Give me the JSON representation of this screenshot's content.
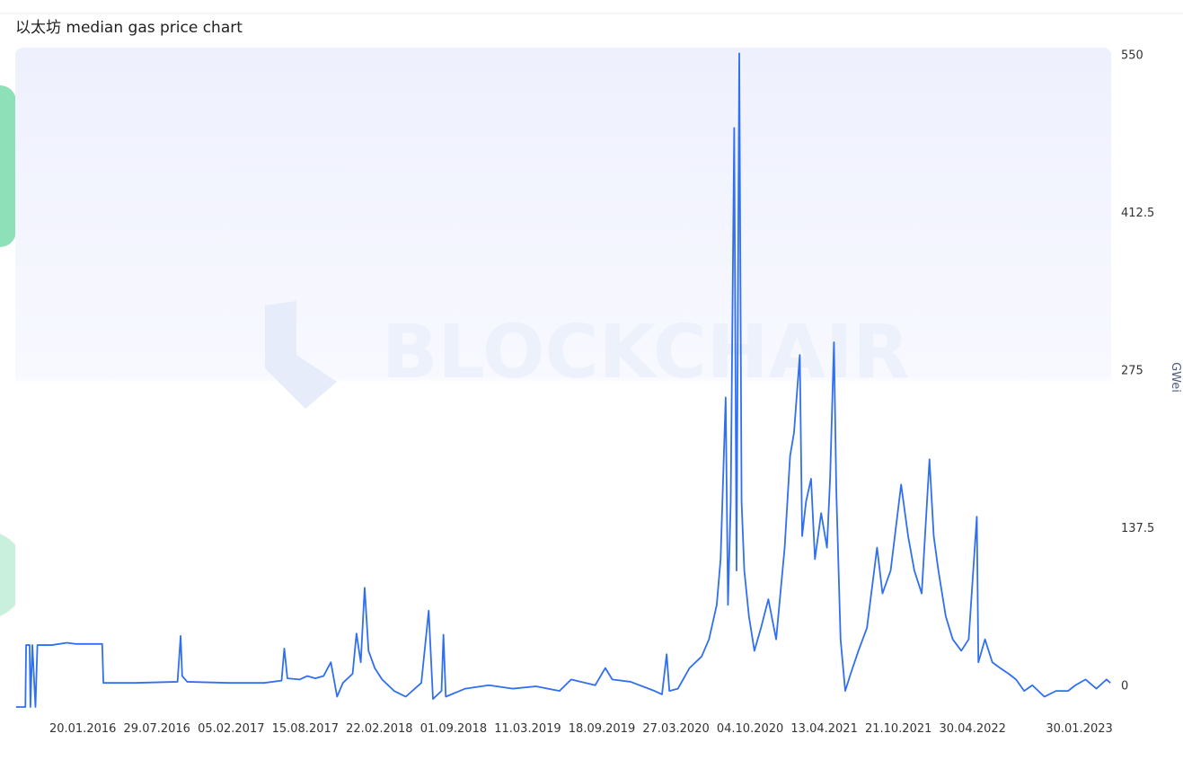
{
  "chart_data": {
    "type": "line",
    "title": "以太坊 median gas price chart",
    "watermark": "BLOCKCHAIR",
    "y_axis_label": "GWei",
    "color": "#2f6ff0",
    "xlim": [
      "30.07.2015",
      "22.04.2023"
    ],
    "xticks": [
      "20.01.2016",
      "29.07.2016",
      "05.02.2017",
      "15.08.2017",
      "22.02.2018",
      "01.09.2018",
      "11.03.2019",
      "18.09.2019",
      "27.03.2020",
      "04.10.2020",
      "13.04.2021",
      "21.10.2021",
      "30.04.2022",
      "30.01.2023"
    ],
    "ylim": [
      -19,
      556
    ],
    "yticks": [
      0,
      137.5,
      275,
      412.5,
      550
    ],
    "y_axis_side": "right",
    "grid": false,
    "x": [
      "01.08.2015",
      "25.08.2015",
      "27.08.2015",
      "05.09.2015",
      "07.09.2015",
      "12.09.2015",
      "20.09.2015",
      "25.09.2015",
      "01.11.2015",
      "10.12.2015",
      "01.01.2016",
      "10.03.2016",
      "13.03.2016",
      "01.06.2016",
      "20.09.2016",
      "28.09.2016",
      "02.10.2016",
      "15.10.2016",
      "01.02.2017",
      "01.05.2017",
      "15.06.2017",
      "22.06.2017",
      "30.06.2017",
      "01.08.2017",
      "20.08.2017",
      "10.09.2017",
      "01.10.2017",
      "20.10.2017",
      "05.11.2017",
      "20.11.2017",
      "15.12.2017",
      "25.12.2017",
      "05.01.2018",
      "15.01.2018",
      "25.01.2018",
      "10.02.2018",
      "01.03.2018",
      "01.04.2018",
      "01.05.2018",
      "10.06.2018",
      "29.06.2018",
      "10.07.2018",
      "01.08.2018",
      "06.08.2018",
      "12.08.2018",
      "01.10.2018",
      "01.12.2018",
      "01.02.2019",
      "01.04.2019",
      "01.06.2019",
      "01.07.2019",
      "01.09.2019",
      "27.09.2019",
      "15.10.2019",
      "01.12.2019",
      "01.02.2020",
      "20.02.2020",
      "03.03.2020",
      "10.03.2020",
      "01.04.2020",
      "01.05.2020",
      "01.06.2020",
      "20.06.2020",
      "10.07.2020",
      "20.07.2020",
      "02.08.2020",
      "08.08.2020",
      "15.08.2020",
      "24.08.2020",
      "30.08.2020",
      "06.09.2020",
      "12.09.2020",
      "19.09.2020",
      "01.10.2020",
      "15.10.2020",
      "01.11.2020",
      "20.11.2020",
      "10.12.2020",
      "01.01.2021",
      "15.01.2021",
      "25.01.2021",
      "09.02.2021",
      "15.02.2021",
      "25.02.2021",
      "10.03.2021",
      "20.03.2021",
      "05.04.2021",
      "20.04.2021",
      "28.04.2021",
      "08.05.2021",
      "14.05.2021",
      "25.05.2021",
      "06.06.2021",
      "20.06.2021",
      "10.07.2021",
      "01.08.2021",
      "27.08.2021",
      "10.09.2021",
      "01.10.2021",
      "28.10.2021",
      "15.11.2021",
      "01.12.2021",
      "20.12.2021",
      "09.01.2022",
      "20.01.2022",
      "01.02.2022",
      "20.02.2022",
      "10.03.2022",
      "01.04.2022",
      "20.04.2022",
      "11.05.2022",
      "15.05.2022",
      "01.06.2022",
      "20.06.2022",
      "10.07.2022",
      "01.08.2022",
      "20.08.2022",
      "10.09.2022",
      "01.10.2022",
      "01.11.2022",
      "01.12.2022",
      "01.01.2023",
      "20.01.2023",
      "15.02.2023",
      "15.03.2023",
      "10.04.2023",
      "20.04.2023"
    ],
    "values": [
      -19,
      -19,
      35,
      35,
      -19,
      35,
      -19,
      35,
      35,
      37,
      36,
      36,
      2,
      2,
      3,
      43,
      8,
      3,
      2,
      2,
      4,
      32,
      6,
      5,
      8,
      6,
      8,
      20,
      -10,
      2,
      10,
      45,
      20,
      85,
      30,
      15,
      5,
      -5,
      -10,
      2,
      65,
      -12,
      -5,
      44,
      -10,
      -3,
      0,
      -3,
      -1,
      -5,
      5,
      0,
      15,
      5,
      3,
      -5,
      -8,
      27,
      -5,
      -3,
      15,
      25,
      40,
      70,
      110,
      251,
      70,
      160,
      486,
      100,
      551,
      160,
      100,
      60,
      30,
      50,
      75,
      40,
      120,
      200,
      220,
      288,
      130,
      160,
      180,
      110,
      150,
      120,
      180,
      299,
      170,
      40,
      -5,
      10,
      30,
      50,
      120,
      80,
      100,
      175,
      130,
      100,
      80,
      197,
      130,
      100,
      60,
      40,
      30,
      40,
      147,
      20,
      40,
      20,
      15,
      10,
      5,
      -5,
      0,
      -10,
      -5,
      -5,
      0,
      5,
      -3,
      5,
      2
    ]
  }
}
